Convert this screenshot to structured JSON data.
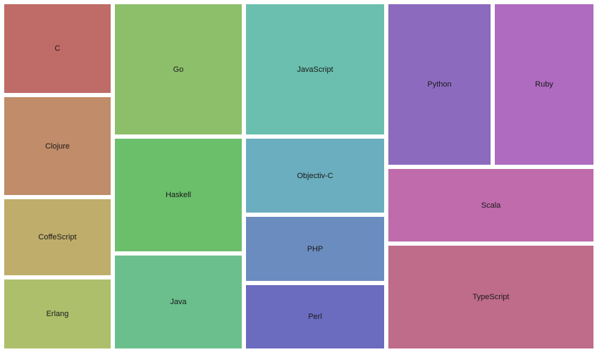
{
  "chart_data": {
    "type": "treemap",
    "title": "",
    "columns": [
      {
        "cells": [
          {
            "name": "C",
            "value": 126,
            "color": "#bf6b67"
          },
          {
            "name": "Clojure",
            "value": 139,
            "color": "#c18c69"
          },
          {
            "name": "CoffeScript",
            "value": 108,
            "color": "#bfad6b"
          },
          {
            "name": "Erlang",
            "value": 97,
            "color": "#adbf6b"
          }
        ]
      },
      {
        "cells": [
          {
            "name": "Go",
            "value": 185,
            "color": "#8dbf6b"
          },
          {
            "name": "Haskell",
            "value": 160,
            "color": "#6bbf6b"
          },
          {
            "name": "Java",
            "value": 133,
            "color": "#6bbf8c"
          }
        ]
      },
      {
        "cells": [
          {
            "name": "JavaScript",
            "value": 186,
            "color": "#6bbfae"
          },
          {
            "name": "Objectiv-C",
            "value": 105,
            "color": "#6baebf"
          },
          {
            "name": "PHP",
            "value": 91,
            "color": "#6b8cbf"
          },
          {
            "name": "Perl",
            "value": 91,
            "color": "#6b6bbf"
          }
        ]
      },
      {
        "groups": [
          {
            "direction": "row",
            "size": 229,
            "cells": [
              {
                "name": "Python",
                "value": 146,
                "color": "#8c6bbf"
              },
              {
                "name": "Ruby",
                "value": 140,
                "color": "#ae6bbf"
              }
            ]
          },
          {
            "direction": "column",
            "size": 256,
            "cells": [
              {
                "name": "Scala",
                "value": 103,
                "color": "#bf6bac"
              },
              {
                "name": "TypeScript",
                "value": 147,
                "color": "#bf6b8a"
              }
            ]
          }
        ]
      }
    ]
  }
}
